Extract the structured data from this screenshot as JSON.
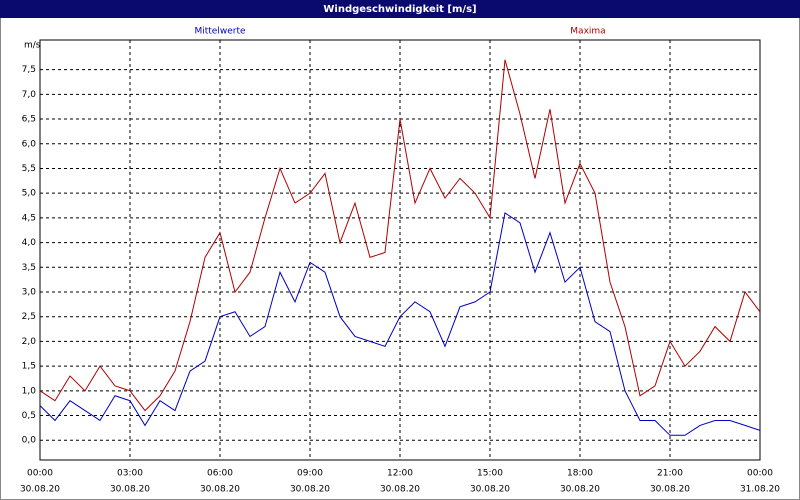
{
  "chart_data": {
    "type": "line",
    "title": "Windgeschwindigkeit [m/s]",
    "y_unit": "m/s",
    "x": [
      0,
      0.5,
      1,
      1.5,
      2,
      2.5,
      3,
      3.5,
      4,
      4.5,
      5,
      5.5,
      6,
      6.5,
      7,
      7.5,
      8,
      8.5,
      9,
      9.5,
      10,
      10.5,
      11,
      11.5,
      12,
      12.5,
      13,
      13.5,
      14,
      14.5,
      15,
      15.5,
      16,
      16.5,
      17,
      17.5,
      18,
      18.5,
      19,
      19.5,
      20,
      20.5,
      21,
      21.5,
      22,
      22.5,
      23,
      23.5,
      24
    ],
    "series": [
      {
        "name": "Mittelwerte",
        "color": "#0000c0",
        "values": [
          0.7,
          0.4,
          0.8,
          0.6,
          0.4,
          0.9,
          0.8,
          0.3,
          0.8,
          0.6,
          1.4,
          1.6,
          2.5,
          2.6,
          2.1,
          2.3,
          3.4,
          2.8,
          3.6,
          3.4,
          2.5,
          2.1,
          2.0,
          1.9,
          2.5,
          2.8,
          2.6,
          1.9,
          2.7,
          2.8,
          3.0,
          4.6,
          4.4,
          3.4,
          4.2,
          3.2,
          3.5,
          2.4,
          2.2,
          1.0,
          0.4,
          0.4,
          0.1,
          0.1,
          0.3,
          0.4,
          0.4,
          0.3,
          0.2
        ]
      },
      {
        "name": "Maxima",
        "color": "#b00000",
        "values": [
          1.0,
          0.8,
          1.3,
          1.0,
          1.5,
          1.1,
          1.0,
          0.6,
          0.9,
          1.4,
          2.4,
          3.7,
          4.2,
          3.0,
          3.4,
          4.5,
          5.5,
          4.8,
          5.0,
          5.4,
          4.0,
          4.8,
          3.7,
          3.8,
          6.5,
          4.8,
          5.5,
          4.9,
          5.3,
          5.0,
          4.5,
          7.7,
          6.6,
          5.3,
          6.7,
          4.8,
          5.6,
          5.0,
          3.2,
          2.3,
          0.9,
          1.1,
          2.0,
          1.5,
          1.8,
          2.3,
          2.0,
          3.0,
          2.6
        ]
      }
    ],
    "xlim": [
      0,
      24
    ],
    "xticks": [
      {
        "value": 0,
        "label": "00:00"
      },
      {
        "value": 3,
        "label": "03:00"
      },
      {
        "value": 6,
        "label": "06:00"
      },
      {
        "value": 9,
        "label": "09:00"
      },
      {
        "value": 12,
        "label": "12:00"
      },
      {
        "value": 15,
        "label": "15:00"
      },
      {
        "value": 18,
        "label": "18:00"
      },
      {
        "value": 21,
        "label": "21:00"
      },
      {
        "value": 24,
        "label": "00:00"
      }
    ],
    "xtick_dates": [
      "30.08.20",
      "30.08.20",
      "30.08.20",
      "30.08.20",
      "30.08.20",
      "30.08.20",
      "30.08.20",
      "30.08.20",
      "31.08.20"
    ],
    "ylim": [
      -0.4,
      8.1
    ],
    "yticks": [
      {
        "value": 0,
        "label": "0,0"
      },
      {
        "value": 0.5,
        "label": "0,5"
      },
      {
        "value": 1,
        "label": "1,0"
      },
      {
        "value": 1.5,
        "label": "1,5"
      },
      {
        "value": 2,
        "label": "2,0"
      },
      {
        "value": 2.5,
        "label": "2,5"
      },
      {
        "value": 3,
        "label": "3,0"
      },
      {
        "value": 3.5,
        "label": "3,5"
      },
      {
        "value": 4,
        "label": "4,0"
      },
      {
        "value": 4.5,
        "label": "4,5"
      },
      {
        "value": 5,
        "label": "5,0"
      },
      {
        "value": 5.5,
        "label": "5,5"
      },
      {
        "value": 6,
        "label": "6,0"
      },
      {
        "value": 6.5,
        "label": "6,5"
      },
      {
        "value": 7,
        "label": "7,0"
      },
      {
        "value": 7.5,
        "label": "7,5"
      }
    ],
    "grid": true
  }
}
